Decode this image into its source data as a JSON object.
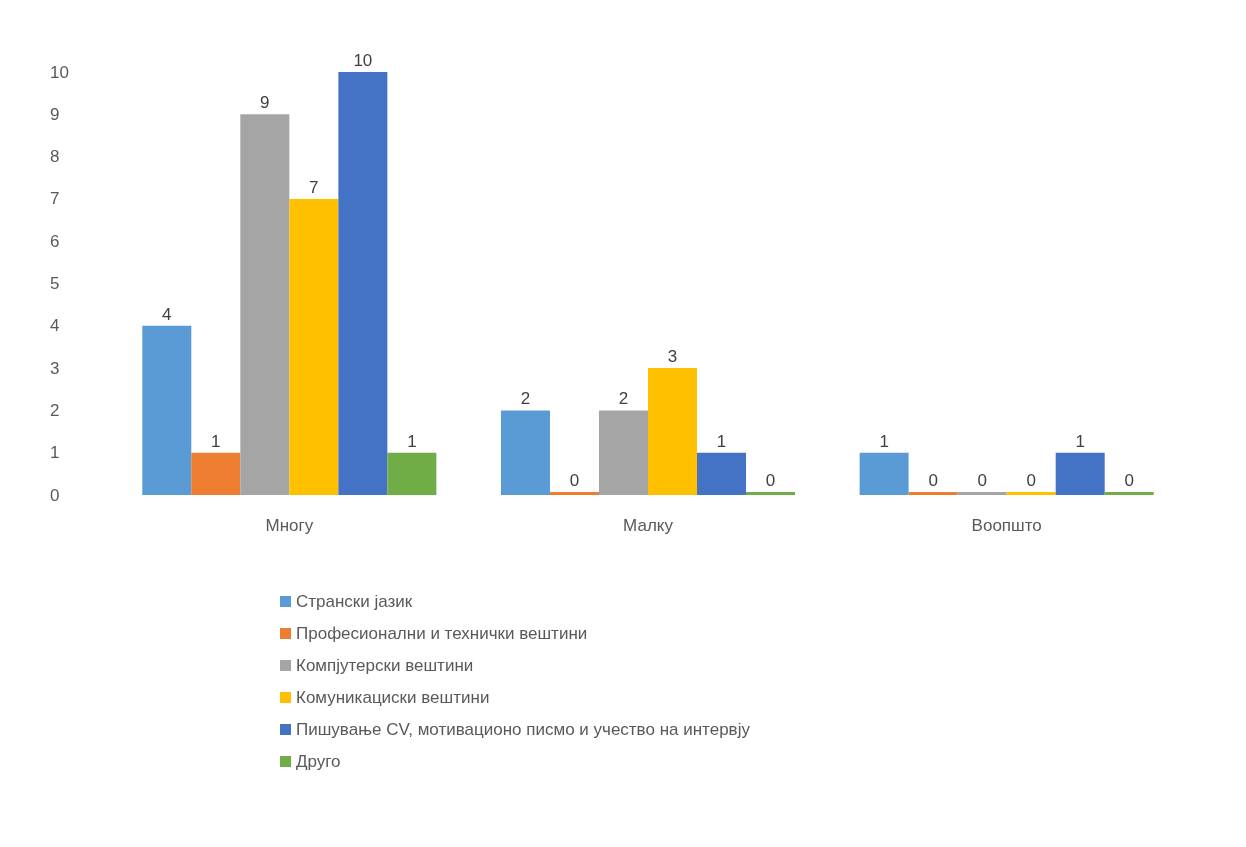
{
  "chart_data": {
    "type": "bar",
    "categories": [
      "Многу",
      "Малку",
      "Воопшто"
    ],
    "series": [
      {
        "name": "Странски јазик",
        "color": "#5b9bd5",
        "values": [
          4,
          2,
          1
        ]
      },
      {
        "name": "Професионални и технички вештини",
        "color": "#ed7d31",
        "values": [
          1,
          0,
          0
        ]
      },
      {
        "name": "Компјутерски вештини",
        "color": "#a5a5a5",
        "values": [
          9,
          2,
          0
        ]
      },
      {
        "name": "Комуникациски вештини",
        "color": "#ffc000",
        "values": [
          7,
          3,
          0
        ]
      },
      {
        "name": "Пишување CV, мотивационо писмо и учество на интервју",
        "color": "#4472c4",
        "values": [
          10,
          1,
          1
        ]
      },
      {
        "name": "Друго",
        "color": "#70ad47",
        "values": [
          1,
          0,
          0
        ]
      }
    ],
    "ylim": [
      0,
      10
    ],
    "yticks": [
      0,
      1,
      2,
      3,
      4,
      5,
      6,
      7,
      8,
      9,
      10
    ],
    "grid": false,
    "legend": "bottom",
    "data_labels": true
  }
}
